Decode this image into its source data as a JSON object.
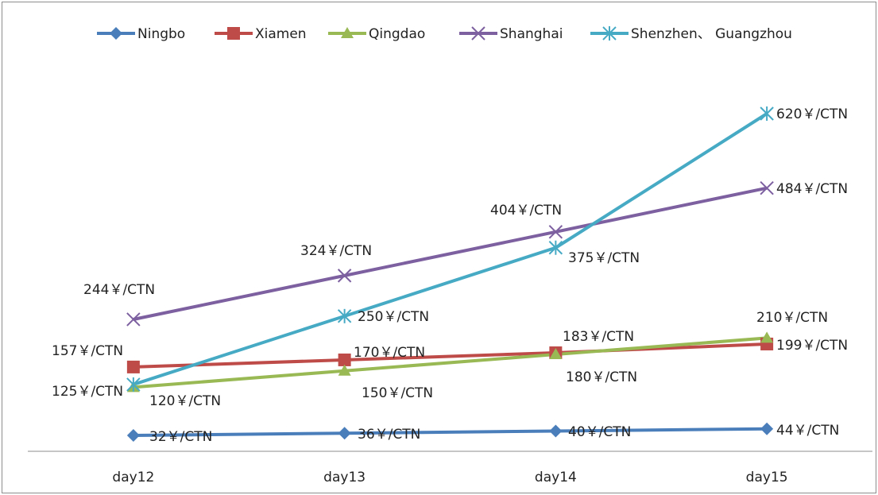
{
  "chart_data": {
    "type": "line",
    "title": "",
    "xlabel": "",
    "ylabel": "",
    "categories": [
      "day12",
      "day13",
      "day14",
      "day15"
    ],
    "ylim": [
      0,
      700
    ],
    "grid": false,
    "legend_position": "top",
    "series": [
      {
        "name": "Ningbo",
        "color": "#4a7ebb",
        "marker": "diamond",
        "values": [
          32,
          36,
          40,
          44
        ],
        "labels": [
          "32￥/CTN",
          "36￥/CTN",
          "40￥/CTN",
          "44￥/CTN"
        ]
      },
      {
        "name": "Xiamen",
        "color": "#be4b48",
        "marker": "square",
        "values": [
          157,
          170,
          183,
          199
        ],
        "labels": [
          "157￥/CTN",
          "170￥/CTN",
          "183￥/CTN",
          "199￥/CTN"
        ]
      },
      {
        "name": "Qingdao",
        "color": "#98b954",
        "marker": "triangle",
        "values": [
          120,
          150,
          180,
          210
        ],
        "labels": [
          "120￥/CTN",
          "150￥/CTN",
          "180￥/CTN",
          "210￥/CTN"
        ]
      },
      {
        "name": "Shanghai",
        "color": "#7d60a0",
        "marker": "x",
        "values": [
          244,
          324,
          404,
          484
        ],
        "labels": [
          "244￥/CTN",
          "324￥/CTN",
          "404￥/CTN",
          "484￥/CTN"
        ]
      },
      {
        "name": "Shenzhen、 Guangzhou",
        "color": "#46aac5",
        "marker": "asterisk",
        "values": [
          125,
          250,
          375,
          620
        ],
        "labels": [
          "125￥/CTN",
          "250￥/CTN",
          "375￥/CTN",
          "620￥/CTN"
        ]
      }
    ]
  }
}
